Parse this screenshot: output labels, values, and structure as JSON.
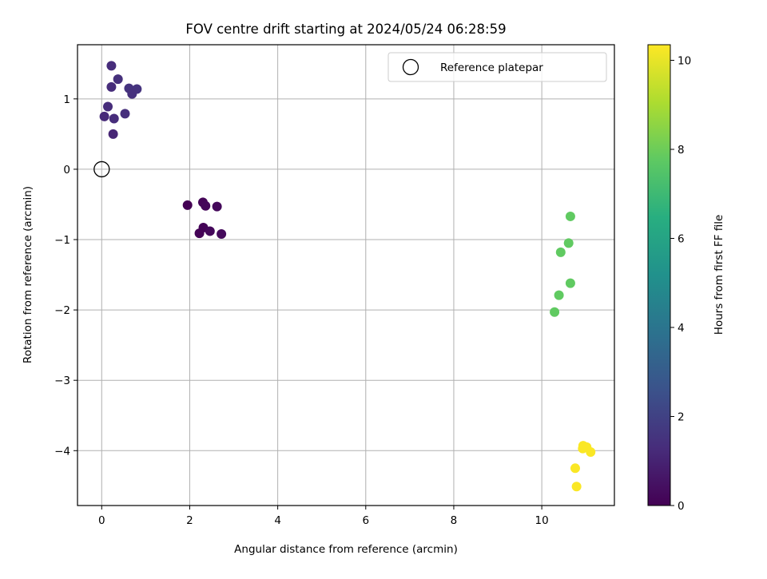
{
  "chart_data": {
    "type": "scatter",
    "title": "FOV centre drift starting at 2024/05/24 06:28:59",
    "xlabel": "Angular distance from reference (arcmin)",
    "ylabel": "Rotation from reference (arcmin)",
    "colorbar_label": "Hours from first FF file",
    "xlim": [
      -0.55,
      11.65
    ],
    "ylim": [
      -4.78,
      1.77
    ],
    "clim": [
      0,
      10.35
    ],
    "colormap": "viridis",
    "grid": true,
    "legend_position": "top-right",
    "x_ticks": [
      0,
      2,
      4,
      6,
      8,
      10
    ],
    "y_ticks": [
      1,
      0,
      -1,
      -2,
      -3,
      -4
    ],
    "colorbar_ticks": [
      0,
      2,
      4,
      6,
      8,
      10
    ],
    "x_tick_labels": [
      "0",
      "2",
      "4",
      "6",
      "8",
      "10"
    ],
    "y_tick_labels": [
      "1",
      "0",
      "−1",
      "−2",
      "−3",
      "−4"
    ],
    "colorbar_tick_labels": [
      "0",
      "2",
      "4",
      "6",
      "8",
      "10"
    ],
    "reference_point": {
      "label": "Reference platepar",
      "x": 0,
      "y": 0
    },
    "points": [
      {
        "x": 1.95,
        "y": -0.51,
        "hours": 0.0
      },
      {
        "x": 2.3,
        "y": -0.47,
        "hours": 0.1
      },
      {
        "x": 2.36,
        "y": -0.52,
        "hours": 0.15
      },
      {
        "x": 2.62,
        "y": -0.53,
        "hours": 0.2
      },
      {
        "x": 2.31,
        "y": -0.83,
        "hours": 0.1
      },
      {
        "x": 2.22,
        "y": -0.91,
        "hours": 0.05
      },
      {
        "x": 2.46,
        "y": -0.88,
        "hours": 0.2
      },
      {
        "x": 2.72,
        "y": -0.92,
        "hours": 0.25
      },
      {
        "x": 0.22,
        "y": 1.47,
        "hours": 1.3
      },
      {
        "x": 0.37,
        "y": 1.28,
        "hours": 1.4
      },
      {
        "x": 0.22,
        "y": 1.17,
        "hours": 1.3
      },
      {
        "x": 0.62,
        "y": 1.15,
        "hours": 1.5
      },
      {
        "x": 0.8,
        "y": 1.14,
        "hours": 1.5
      },
      {
        "x": 0.69,
        "y": 1.07,
        "hours": 1.45
      },
      {
        "x": 0.14,
        "y": 0.89,
        "hours": 1.3
      },
      {
        "x": 0.06,
        "y": 0.75,
        "hours": 1.2
      },
      {
        "x": 0.28,
        "y": 0.72,
        "hours": 1.3
      },
      {
        "x": 0.53,
        "y": 0.79,
        "hours": 1.35
      },
      {
        "x": 0.26,
        "y": 0.5,
        "hours": 1.1
      },
      {
        "x": 10.65,
        "y": -0.67,
        "hours": 7.8
      },
      {
        "x": 10.61,
        "y": -1.05,
        "hours": 7.8
      },
      {
        "x": 10.43,
        "y": -1.18,
        "hours": 7.8
      },
      {
        "x": 10.65,
        "y": -1.62,
        "hours": 7.8
      },
      {
        "x": 10.39,
        "y": -1.79,
        "hours": 7.8
      },
      {
        "x": 10.29,
        "y": -2.03,
        "hours": 7.8
      },
      {
        "x": 10.94,
        "y": -3.93,
        "hours": 10.3
      },
      {
        "x": 11.02,
        "y": -3.95,
        "hours": 10.3
      },
      {
        "x": 10.93,
        "y": -3.97,
        "hours": 10.3
      },
      {
        "x": 11.11,
        "y": -4.02,
        "hours": 10.3
      },
      {
        "x": 10.76,
        "y": -4.25,
        "hours": 10.3
      },
      {
        "x": 10.79,
        "y": -4.51,
        "hours": 10.3
      }
    ]
  }
}
